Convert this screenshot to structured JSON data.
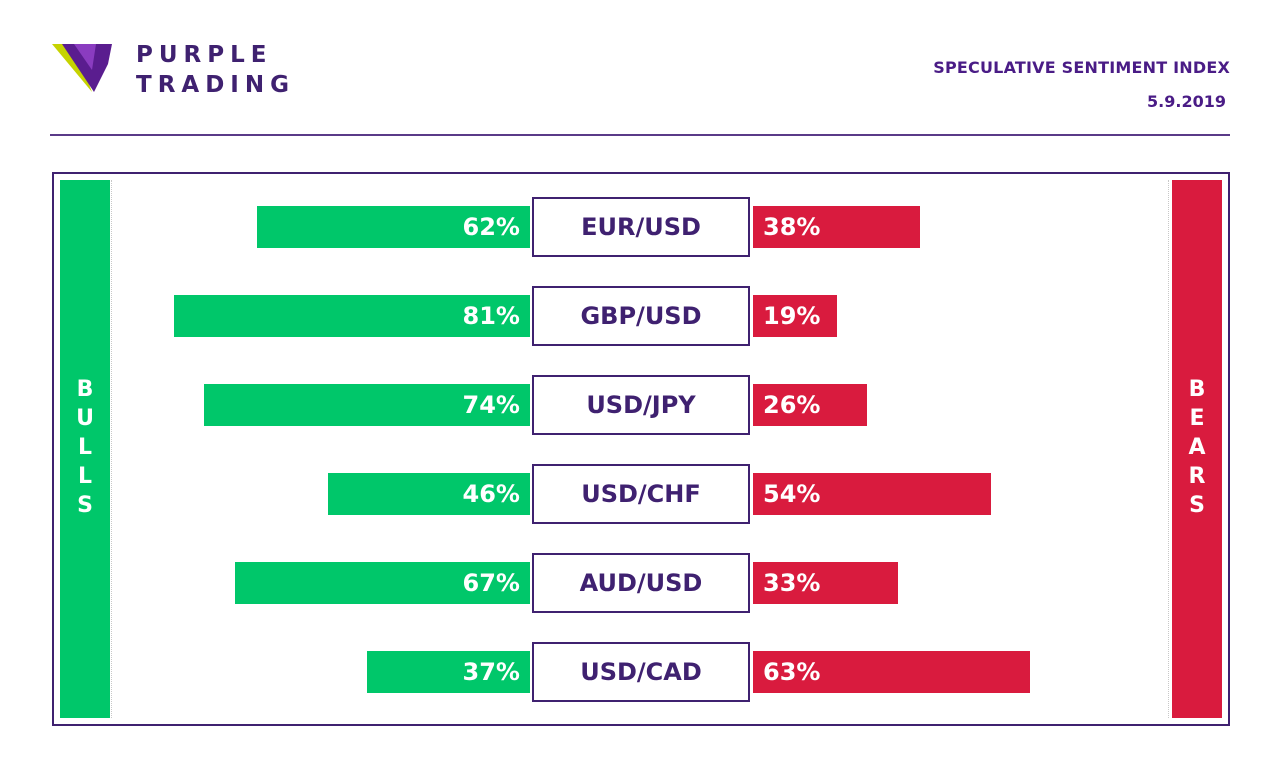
{
  "brand": {
    "line1": "PURPLE",
    "line2": "TRADING"
  },
  "header": {
    "title": "SPECULATIVE SENTIMENT INDEX",
    "date": "5.9.2019"
  },
  "labels": {
    "bulls": "BULLS",
    "bears": "BEARS"
  },
  "colors": {
    "bulls": "#00c76a",
    "bears": "#d91b3e",
    "brand": "#3f2170"
  },
  "chart_data": {
    "type": "bar",
    "categories": [
      "EUR/USD",
      "GBP/USD",
      "USD/JPY",
      "USD/CHF",
      "AUD/USD",
      "USD/CAD"
    ],
    "series": [
      {
        "name": "BULLS",
        "values": [
          62,
          81,
          74,
          46,
          67,
          37
        ]
      },
      {
        "name": "BEARS",
        "values": [
          38,
          19,
          26,
          54,
          33,
          63
        ]
      }
    ],
    "value_labels_bulls": [
      "62%",
      "81%",
      "74%",
      "46%",
      "67%",
      "37%"
    ],
    "value_labels_bears": [
      "38%",
      "19%",
      "26%",
      "54%",
      "33%",
      "63%"
    ],
    "unit": "%",
    "ylim": [
      0,
      100
    ]
  }
}
